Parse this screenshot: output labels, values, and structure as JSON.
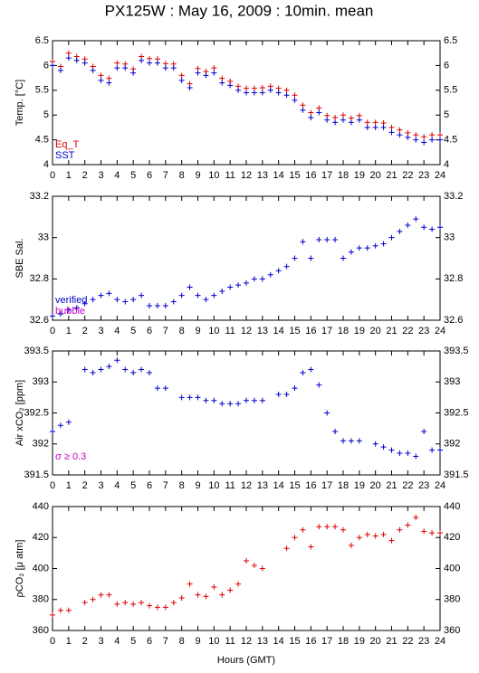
{
  "title": "PX125W : May 16, 2009 : 10min. mean",
  "xlabel": "Hours (GMT)",
  "chart_data": [
    {
      "type": "scatter",
      "ylabel": "Temp. [°C]",
      "xlim": [
        0,
        24
      ],
      "xticks": [
        0,
        1,
        2,
        3,
        4,
        5,
        6,
        7,
        8,
        9,
        10,
        11,
        12,
        13,
        14,
        15,
        16,
        17,
        18,
        19,
        20,
        21,
        22,
        23,
        24
      ],
      "ylim": [
        4,
        6.5
      ],
      "yticks": [
        4,
        4.5,
        5,
        5.5,
        6,
        6.5
      ],
      "x": [
        0,
        0.5,
        1,
        1.5,
        2,
        2.5,
        3,
        3.5,
        4,
        4.5,
        5,
        5.5,
        6,
        6.5,
        7,
        7.5,
        8,
        8.5,
        9,
        9.5,
        10,
        10.5,
        11,
        11.5,
        12,
        12.5,
        13,
        13.5,
        14,
        14.5,
        15,
        15.5,
        16,
        16.5,
        17,
        17.5,
        18,
        18.5,
        19,
        19.5,
        20,
        20.5,
        21,
        21.5,
        22,
        22.5,
        23,
        23.5,
        24
      ],
      "series": [
        {
          "name": "Eq_T",
          "color": "#dd0000",
          "values": [
            6.08,
            5.98,
            6.25,
            6.18,
            6.13,
            5.98,
            5.8,
            5.74,
            6.05,
            6.03,
            5.93,
            6.18,
            6.14,
            6.13,
            6.04,
            6.03,
            5.8,
            5.63,
            5.94,
            5.88,
            5.95,
            5.74,
            5.68,
            5.58,
            5.54,
            5.54,
            5.55,
            5.58,
            5.54,
            5.5,
            5.4,
            5.2,
            5.05,
            5.14,
            4.99,
            4.95,
            5.0,
            4.94,
            4.99,
            4.85,
            4.85,
            4.84,
            4.75,
            4.7,
            4.64,
            4.6,
            4.56,
            4.6,
            4.6
          ]
        },
        {
          "name": "SST",
          "color": "#0000cc",
          "values": [
            6.0,
            5.9,
            6.15,
            6.1,
            6.05,
            5.9,
            5.7,
            5.65,
            5.95,
            5.95,
            5.85,
            6.1,
            6.05,
            6.05,
            5.95,
            5.95,
            5.7,
            5.55,
            5.85,
            5.8,
            5.85,
            5.65,
            5.6,
            5.5,
            5.45,
            5.45,
            5.45,
            5.5,
            5.45,
            5.4,
            5.3,
            5.1,
            4.95,
            5.05,
            4.9,
            4.85,
            4.9,
            4.85,
            4.9,
            4.75,
            4.75,
            4.75,
            4.65,
            4.6,
            4.55,
            4.5,
            4.45,
            4.5,
            4.5
          ]
        }
      ]
    },
    {
      "type": "scatter",
      "ylabel": "SBE Sal.",
      "xlim": [
        0,
        24
      ],
      "xticks": [
        0,
        1,
        2,
        3,
        4,
        5,
        6,
        7,
        8,
        9,
        10,
        11,
        12,
        13,
        14,
        15,
        16,
        17,
        18,
        19,
        20,
        21,
        22,
        23,
        24
      ],
      "ylim": [
        32.6,
        33.2
      ],
      "yticks": [
        32.6,
        32.8,
        33,
        33.2
      ],
      "x": [
        0,
        0.5,
        1,
        1.5,
        2,
        2.5,
        3,
        3.5,
        4,
        4.5,
        5,
        5.5,
        6,
        6.5,
        7,
        7.5,
        8,
        8.5,
        9,
        9.5,
        10,
        10.5,
        11,
        11.5,
        12,
        12.5,
        13,
        13.5,
        14,
        14.5,
        15,
        15.5,
        16,
        16.5,
        17,
        17.5,
        18,
        18.5,
        19,
        19.5,
        20,
        20.5,
        21,
        21.5,
        22,
        22.5,
        23,
        23.5,
        24
      ],
      "series": [
        {
          "name": "verified",
          "color": "#0000cc",
          "values": [
            32.62,
            32.63,
            32.65,
            32.66,
            32.68,
            32.7,
            32.72,
            32.73,
            32.7,
            32.69,
            32.7,
            32.72,
            32.67,
            32.67,
            32.67,
            32.69,
            32.72,
            32.76,
            32.72,
            32.7,
            32.72,
            32.74,
            32.76,
            32.77,
            32.78,
            32.8,
            32.8,
            32.82,
            32.84,
            32.86,
            32.9,
            32.98,
            32.9,
            32.99,
            32.99,
            32.99,
            32.9,
            32.93,
            32.95,
            32.95,
            32.96,
            32.97,
            33.0,
            33.03,
            33.06,
            33.09,
            33.05,
            33.04,
            33.05
          ]
        },
        {
          "name": "bubble",
          "color": "#cc00cc",
          "values": [
            null,
            null,
            null,
            null,
            null,
            null,
            null,
            null,
            null,
            null,
            null,
            null,
            null,
            null,
            null,
            null,
            null,
            null,
            null,
            null,
            null,
            null,
            null,
            null,
            null,
            null,
            null,
            null,
            null,
            null,
            null,
            null,
            null,
            null,
            null,
            null,
            null,
            null,
            null,
            null,
            null,
            null,
            null,
            null,
            null,
            null,
            null,
            null,
            null
          ]
        }
      ]
    },
    {
      "type": "scatter",
      "ylabel": "Air xCO₂ [ppm]",
      "annotation": "σ ≥ 0.3",
      "annotation_color": "#cc00cc",
      "xlim": [
        0,
        24
      ],
      "xticks": [
        0,
        1,
        2,
        3,
        4,
        5,
        6,
        7,
        8,
        9,
        10,
        11,
        12,
        13,
        14,
        15,
        16,
        17,
        18,
        19,
        20,
        21,
        22,
        23,
        24
      ],
      "ylim": [
        391.5,
        393.5
      ],
      "yticks": [
        391.5,
        392,
        392.5,
        393,
        393.5
      ],
      "x": [
        0,
        0.5,
        1,
        1.5,
        2,
        2.5,
        3,
        3.5,
        4,
        4.5,
        5,
        5.5,
        6,
        6.5,
        7,
        7.5,
        8,
        8.5,
        9,
        9.5,
        10,
        10.5,
        11,
        11.5,
        12,
        12.5,
        13,
        13.5,
        14,
        14.5,
        15,
        15.5,
        16,
        16.5,
        17,
        17.5,
        18,
        18.5,
        19,
        19.5,
        20,
        20.5,
        21,
        21.5,
        22,
        22.5,
        23,
        23.5,
        24
      ],
      "series": [
        {
          "color": "#0000cc",
          "values": [
            392.2,
            392.3,
            392.35,
            null,
            393.2,
            393.15,
            393.2,
            393.25,
            393.35,
            393.2,
            393.15,
            393.2,
            393.15,
            392.9,
            392.9,
            null,
            392.75,
            392.75,
            392.75,
            392.7,
            392.7,
            392.65,
            392.65,
            392.65,
            392.7,
            392.7,
            392.7,
            null,
            392.8,
            392.8,
            392.9,
            393.15,
            393.2,
            392.95,
            392.5,
            392.2,
            392.05,
            392.05,
            392.05,
            null,
            392.0,
            391.95,
            391.9,
            391.85,
            391.85,
            391.8,
            392.2,
            391.9,
            391.9
          ]
        }
      ]
    },
    {
      "type": "scatter",
      "ylabel": "ρCO₂ [μ atm]",
      "xlim": [
        0,
        24
      ],
      "xticks": [
        0,
        1,
        2,
        3,
        4,
        5,
        6,
        7,
        8,
        9,
        10,
        11,
        12,
        13,
        14,
        15,
        16,
        17,
        18,
        19,
        20,
        21,
        22,
        23,
        24
      ],
      "ylim": [
        360,
        440
      ],
      "yticks": [
        360,
        380,
        400,
        420,
        440
      ],
      "x": [
        0,
        0.5,
        1,
        1.5,
        2,
        2.5,
        3,
        3.5,
        4,
        4.5,
        5,
        5.5,
        6,
        6.5,
        7,
        7.5,
        8,
        8.5,
        9,
        9.5,
        10,
        10.5,
        11,
        11.5,
        12,
        12.5,
        13,
        13.5,
        14,
        14.5,
        15,
        15.5,
        16,
        16.5,
        17,
        17.5,
        18,
        18.5,
        19,
        19.5,
        20,
        20.5,
        21,
        21.5,
        22,
        22.5,
        23,
        23.5,
        24
      ],
      "series": [
        {
          "color": "#dd0000",
          "values": [
            370,
            373,
            373,
            null,
            378,
            380,
            383,
            383,
            377,
            378,
            377,
            378,
            376,
            375,
            375,
            378,
            381,
            390,
            383,
            382,
            388,
            383,
            386,
            390,
            405,
            402,
            400,
            null,
            null,
            413,
            420,
            425,
            414,
            427,
            427,
            427,
            425,
            415,
            420,
            422,
            421,
            422,
            418,
            425,
            428,
            433,
            424,
            423,
            423
          ]
        }
      ]
    }
  ]
}
